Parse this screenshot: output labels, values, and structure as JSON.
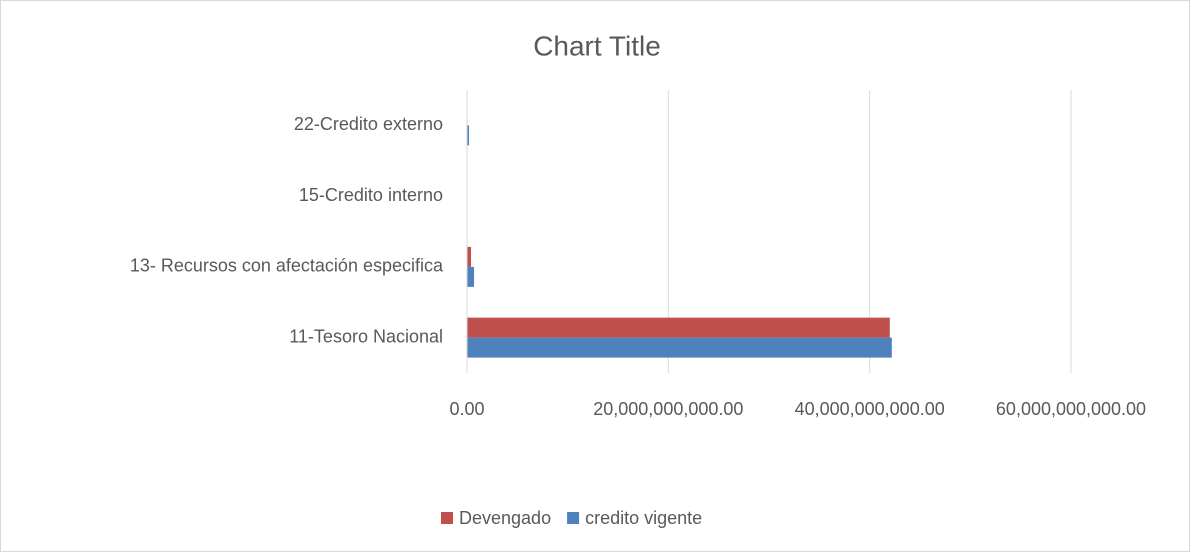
{
  "chart_data": {
    "type": "bar",
    "orientation": "horizontal",
    "title": "Chart Title",
    "categories": [
      "11-Tesoro Nacional",
      "13- Recursos con afectación especifica",
      "15-Credito interno",
      "22-Credito externo"
    ],
    "series": [
      {
        "name": "Devengado",
        "color": "#c0504d",
        "values": [
          42000000000,
          400000000,
          0,
          0
        ]
      },
      {
        "name": "credito vigente",
        "color": "#4f81bd",
        "values": [
          42200000000,
          700000000,
          0,
          200000000
        ]
      }
    ],
    "xlim": [
      0,
      60000000000
    ],
    "xticks": [
      {
        "value": 0,
        "label": "0.00"
      },
      {
        "value": 20000000000,
        "label": "20,000,000,000.00"
      },
      {
        "value": 40000000000,
        "label": "40,000,000,000.00"
      },
      {
        "value": 60000000000,
        "label": "60,000,000,000.00"
      }
    ],
    "grid": true,
    "legend": "bottom"
  }
}
